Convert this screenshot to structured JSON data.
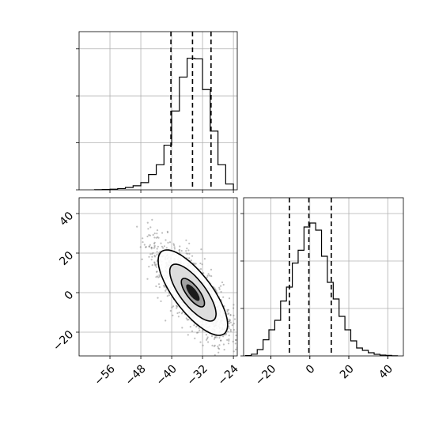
{
  "chart_data": [
    {
      "type": "histogram",
      "panel": "top-left",
      "x_ticks": [
        "−56",
        "−48",
        "−40",
        "−32",
        "−24"
      ],
      "x_tick_values": [
        -56,
        -48,
        -40,
        -32,
        -24
      ],
      "xlim": [
        -64,
        -23
      ],
      "bin_edges": [
        -60,
        -58,
        -56,
        -54,
        -52,
        -50,
        -48,
        -46,
        -44,
        -42,
        -40,
        -38,
        -36,
        -34,
        -32,
        -30,
        -28,
        -26,
        -24
      ],
      "counts": [
        1,
        2,
        4,
        8,
        15,
        26,
        46,
        98,
        160,
        285,
        503,
        720,
        840,
        836,
        640,
        375,
        160,
        37
      ],
      "ylim": [
        0,
        1010
      ],
      "y_tick_values": [
        0,
        300,
        600,
        900
      ],
      "quantiles": [
        -40.2,
        -34.6,
        -29.8
      ],
      "grid": true
    },
    {
      "type": "histogram",
      "panel": "bottom-right",
      "x_ticks": [
        "−20",
        "0",
        "20",
        "40"
      ],
      "x_tick_values": [
        -20,
        0,
        20,
        40
      ],
      "xlim": [
        -34,
        48
      ],
      "bin_edges": [
        -33,
        -30,
        -27,
        -24,
        -21,
        -18,
        -15,
        -12,
        -9,
        -6,
        -3,
        0,
        3,
        6,
        9,
        12,
        15,
        18,
        21,
        24,
        27,
        30,
        33,
        36,
        39,
        42,
        45
      ],
      "counts": [
        2,
        11,
        40,
        102,
        165,
        225,
        347,
        435,
        587,
        668,
        815,
        840,
        795,
        630,
        465,
        360,
        250,
        165,
        95,
        50,
        35,
        20,
        10,
        5,
        3,
        1
      ],
      "ylim": [
        0,
        1000
      ],
      "y_tick_values": [
        0,
        300,
        600,
        900
      ],
      "quantiles": [
        -10.5,
        -0.5,
        11.0
      ],
      "grid": true
    },
    {
      "type": "scatter-density",
      "panel": "bottom-left",
      "x_ticks": [
        "−56",
        "−48",
        "−40",
        "−32",
        "−24"
      ],
      "x_tick_values": [
        -56,
        -48,
        -40,
        -32,
        -24
      ],
      "xlim": [
        -64,
        -23
      ],
      "y_ticks": [
        "−20",
        "0",
        "20",
        "40"
      ],
      "y_tick_values": [
        -20,
        0,
        20,
        40
      ],
      "ylim": [
        -32,
        48
      ],
      "mean": [
        -34.5,
        0
      ],
      "std": [
        5.0,
        12.0
      ],
      "correlation": -0.75,
      "contour_levels": [
        0.5,
        1.0,
        1.5
      ],
      "grid": true
    }
  ]
}
